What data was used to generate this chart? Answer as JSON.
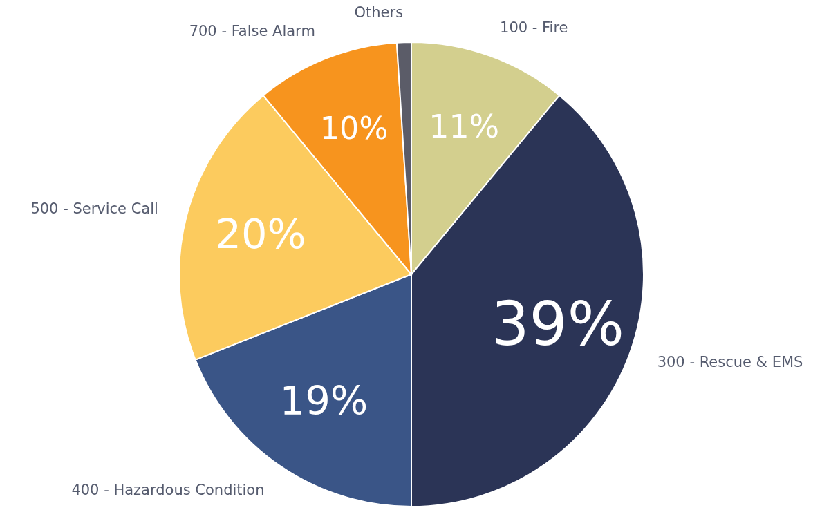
{
  "chart_data": {
    "type": "pie",
    "categories": [
      "100 - Fire",
      "300 - Rescue & EMS",
      "400 - Hazardous Condition",
      "500 - Service Call",
      "700 - False Alarm",
      "Others"
    ],
    "values": [
      11,
      39,
      19,
      20,
      10,
      1
    ],
    "colors": [
      "#d3cf8e",
      "#2b3456",
      "#3a5587",
      "#fccb5e",
      "#f7941e",
      "#5b5c68"
    ],
    "value_labels": [
      "11%",
      "39%",
      "19%",
      "20%",
      "10%",
      null
    ]
  }
}
